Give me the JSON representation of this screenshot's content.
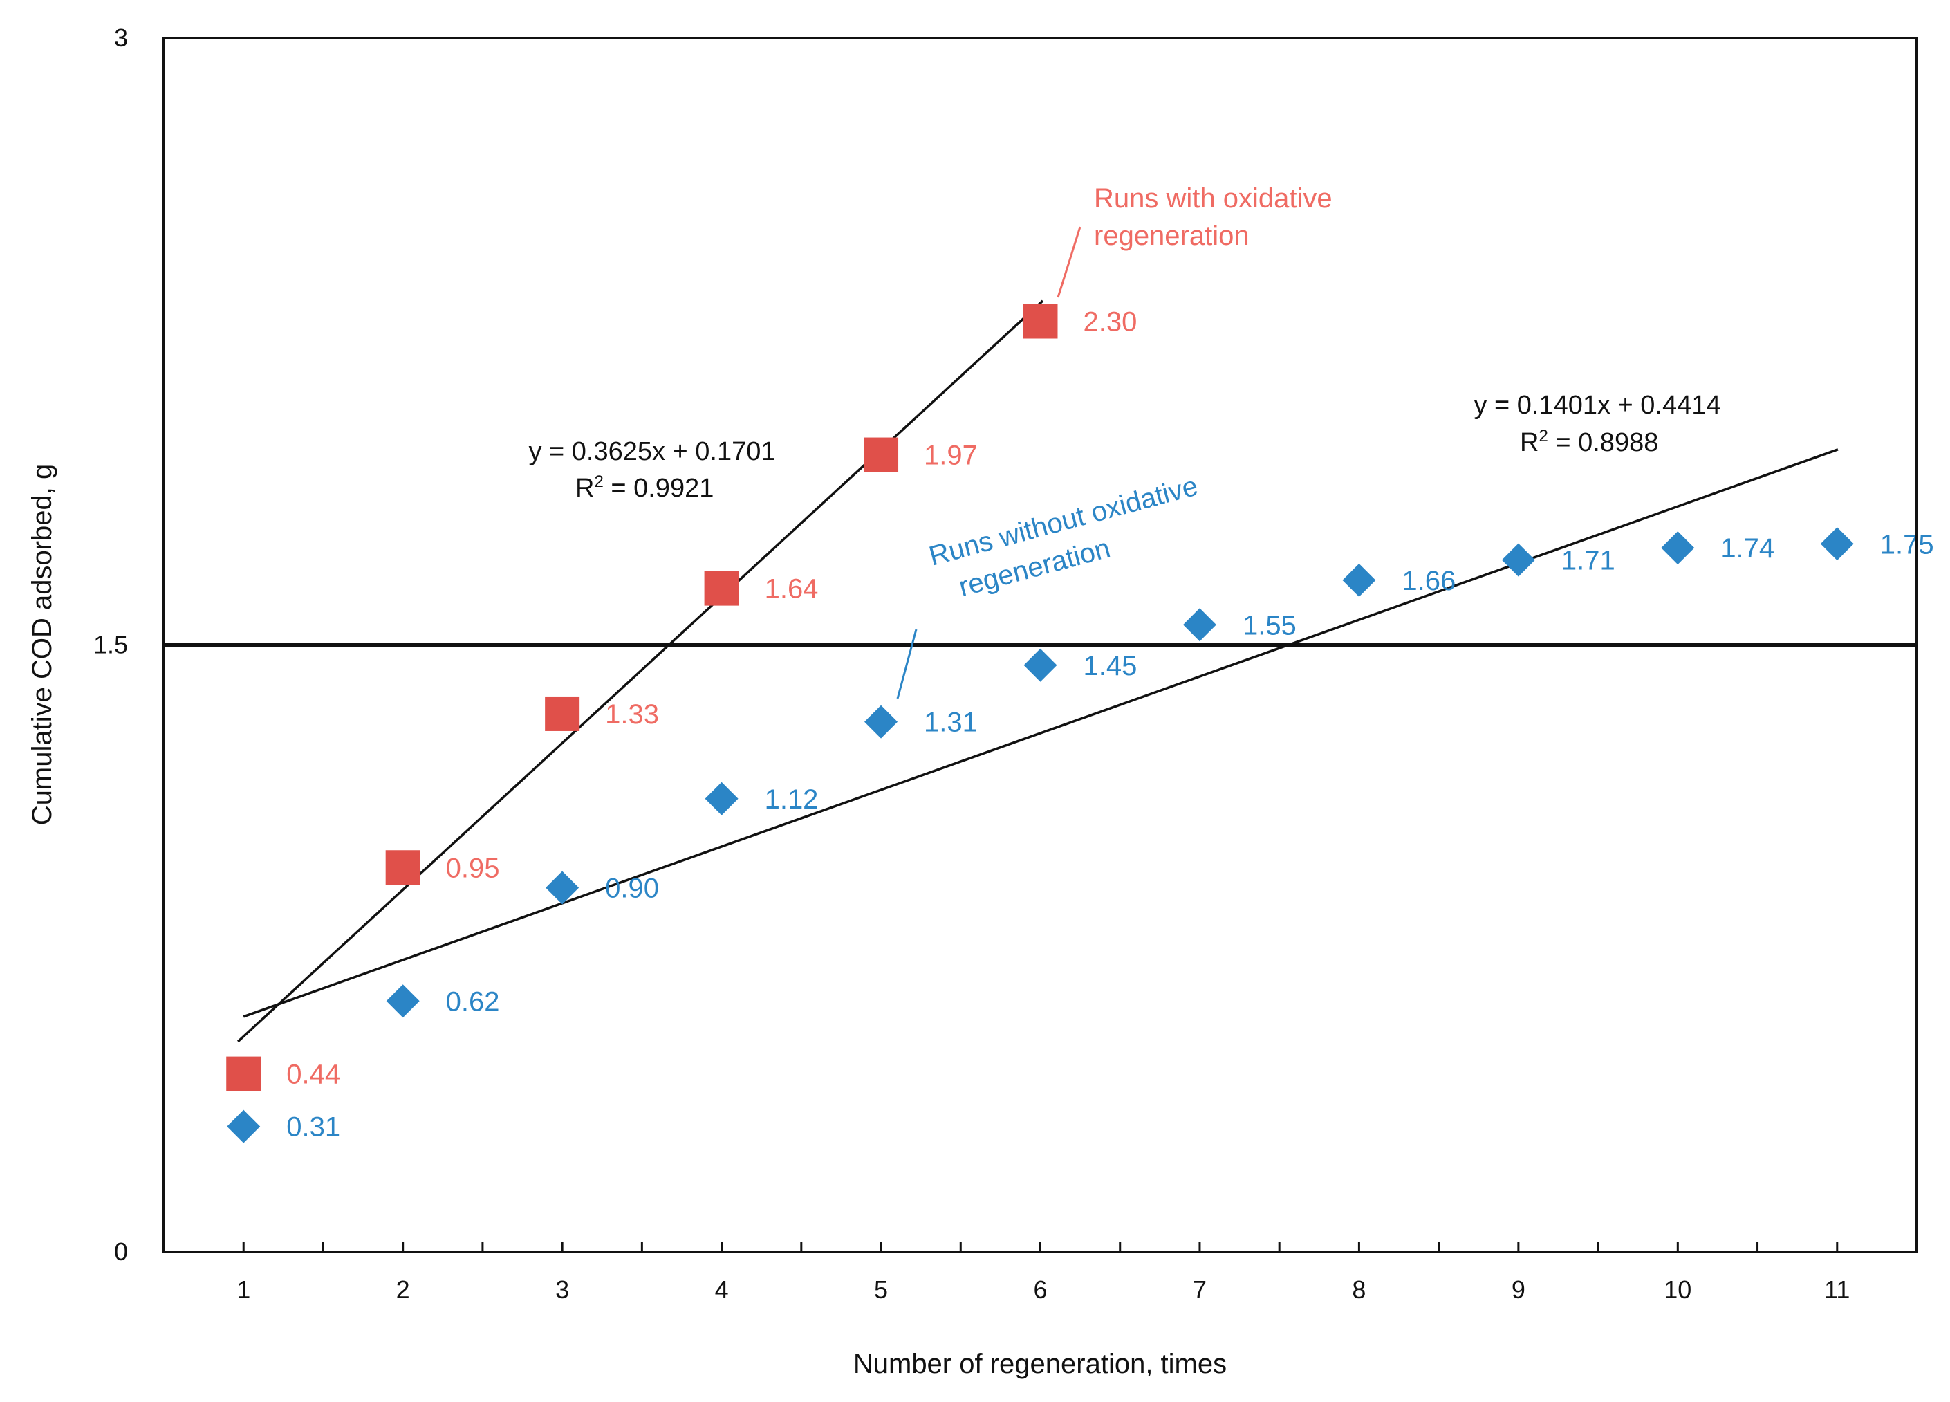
{
  "chart_data": {
    "type": "scatter",
    "xlabel": "Number of regeneration, times",
    "ylabel": "Cumulative COD adsorbed, g",
    "xlim": [
      0.5,
      11.5
    ],
    "ylim": [
      0,
      3
    ],
    "x_ticks": [
      1,
      2,
      3,
      4,
      5,
      6,
      7,
      8,
      9,
      10,
      11
    ],
    "y_ticks": [
      0,
      1.5,
      3
    ],
    "y_tick_labels": [
      "0",
      "1.5",
      "3"
    ],
    "reference_line_y": 1.5,
    "series": [
      {
        "name": "Runs with oxidative regeneration",
        "label_lines": [
          "Runs with oxidative",
          "regeneration"
        ],
        "color": "#e0504a",
        "label_color": "#ef6b63",
        "marker": "square",
        "x": [
          1,
          2,
          3,
          4,
          5,
          6
        ],
        "values": [
          0.44,
          0.95,
          1.33,
          1.64,
          1.97,
          2.3
        ],
        "point_labels": [
          "0.44",
          "0.95",
          "1.33",
          "1.64",
          "1.97",
          "2.30"
        ],
        "trendline": {
          "slope": 0.3625,
          "intercept": 0.1701,
          "x_range": [
            1,
            6
          ],
          "equation": "y = 0.3625x + 0.1701",
          "r2_prefix": "R",
          "r2_sup": "2",
          "r2_value": " = 0.9921"
        }
      },
      {
        "name": "Runs without oxidative regeneration",
        "label_lines": [
          "Runs without oxidative",
          "regeneration"
        ],
        "color": "#2b85c6",
        "label_color": "#2b85c6",
        "marker": "diamond",
        "x": [
          1,
          2,
          3,
          4,
          5,
          6,
          7,
          8,
          9,
          10,
          11
        ],
        "values": [
          0.31,
          0.62,
          0.9,
          1.12,
          1.31,
          1.45,
          1.55,
          1.66,
          1.71,
          1.74,
          1.75
        ],
        "point_labels": [
          "0.31",
          "0.62",
          "0.90",
          "1.12",
          "1.31",
          "1.45",
          "1.55",
          "1.66",
          "1.71",
          "1.74",
          "1.75"
        ],
        "trendline": {
          "slope": 0.1401,
          "intercept": 0.4414,
          "x_range": [
            1,
            11
          ],
          "equation": "y = 0.1401x + 0.4414",
          "r2_prefix": "R",
          "r2_sup": "2",
          "r2_value": " = 0.8988"
        }
      }
    ]
  }
}
